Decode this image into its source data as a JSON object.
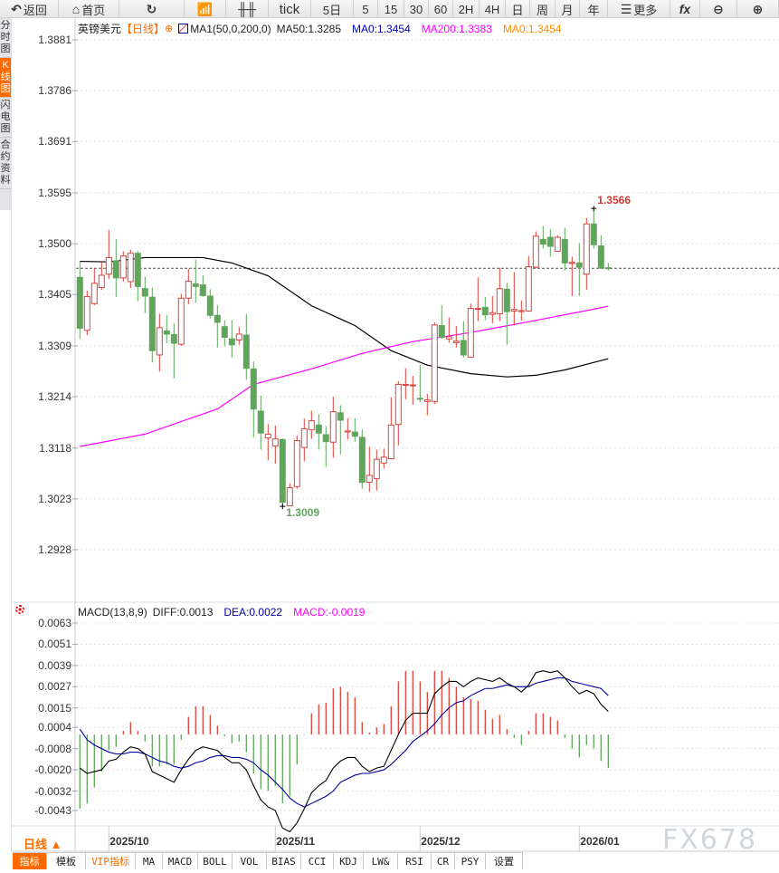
{
  "toolbar": [
    {
      "label": "返回",
      "icon": "back-arrow-icon",
      "w": 65
    },
    {
      "label": "首页",
      "icon": "home-icon",
      "w": 67
    },
    {
      "label": "",
      "icon": "refresh-icon",
      "w": 72
    },
    {
      "label": "",
      "icon": "indicator-chart-icon",
      "w": 46
    },
    {
      "label": "",
      "icon": "candlestick-icon",
      "w": 47
    },
    {
      "label": "tick",
      "icon": "",
      "w": 47
    },
    {
      "label": "5日",
      "icon": "",
      "w": 47
    },
    {
      "label": "5",
      "icon": "",
      "w": 27
    },
    {
      "label": "15",
      "icon": "",
      "w": 29
    },
    {
      "label": "30",
      "icon": "",
      "w": 27
    },
    {
      "label": "60",
      "icon": "",
      "w": 27
    },
    {
      "label": "2H",
      "icon": "",
      "w": 29
    },
    {
      "label": "4H",
      "icon": "",
      "w": 29
    },
    {
      "label": "日",
      "icon": "",
      "w": 27
    },
    {
      "label": "周",
      "icon": "",
      "w": 28
    },
    {
      "label": "月",
      "icon": "",
      "w": 27
    },
    {
      "label": "年",
      "icon": "",
      "w": 31
    },
    {
      "label": "更多",
      "icon": "menu-icon",
      "w": 69
    },
    {
      "label": "",
      "icon": "fx-icon",
      "w": 33
    },
    {
      "label": "",
      "icon": "zoom-out-icon",
      "w": 41
    },
    {
      "label": "",
      "icon": "zoom-in-icon",
      "w": 46
    }
  ],
  "left_tabs": [
    {
      "label": "分时图",
      "active": false
    },
    {
      "label": "K线图",
      "active": true
    },
    {
      "label": "闪电图",
      "active": false
    },
    {
      "label": "合约资料",
      "active": false
    }
  ],
  "legend": {
    "symbol": "英镑美元",
    "period": "【日线】",
    "ma_params": "MA1(50,0,200,0)",
    "ma50": "MA50:1.3285",
    "ma0a": "MA0:1.3454",
    "ma200": "MA200:1.3383",
    "ma0b": "MA0:1.3454"
  },
  "macd_legend": {
    "params": "MACD(13,8,9)",
    "diff": "DIFF:0.0013",
    "dea": "DEA:0.0022",
    "macd": "MACD:-0.0019"
  },
  "period_selector": "日线 ▲",
  "bottom_tabs": [
    {
      "label": "指标",
      "w": 38,
      "active": true
    },
    {
      "label": "模板",
      "w": 43
    },
    {
      "label": "VIP指标",
      "w": 55,
      "vip": true
    },
    {
      "label": "MA",
      "w": 30
    },
    {
      "label": "MACD",
      "w": 39
    },
    {
      "label": "BOLL",
      "w": 38
    },
    {
      "label": "VOL",
      "w": 38
    },
    {
      "label": "BIAS",
      "w": 38
    },
    {
      "label": "CCI",
      "w": 36
    },
    {
      "label": "KDJ",
      "w": 33
    },
    {
      "label": "LW&",
      "w": 38
    },
    {
      "label": "RSI",
      "w": 37
    },
    {
      "label": "CR",
      "w": 26
    },
    {
      "label": "PSY",
      "w": 34
    },
    {
      "label": "设置",
      "w": 41
    }
  ],
  "watermark": "FX678",
  "colors": {
    "up": "#e0413a",
    "down": "#5fa65a",
    "ma50": "#000000",
    "ma200": "#ff00ff",
    "ma0": "#ff8c00",
    "dea": "#0000a0",
    "orange": "#ff6a00",
    "last_price_line": "#1e6fd9"
  },
  "chart_data": {
    "type": "candlestick",
    "price_axis": {
      "ticks": [
        "1.3881",
        "1.3786",
        "1.3691",
        "1.3595",
        "1.3500",
        "1.3405",
        "1.3309",
        "1.3214",
        "1.3118",
        "1.3023",
        "1.2928"
      ],
      "range": [
        1.2928,
        1.3881
      ]
    },
    "date_ticks": [
      {
        "label": "2025/10",
        "candle": 5
      },
      {
        "label": "2025/11",
        "candle": 28
      },
      {
        "label": "2025/12",
        "candle": 48
      },
      {
        "label": "2026/01",
        "candle": 70
      }
    ],
    "last_price": 1.3454,
    "high_label": {
      "text": "1.3566",
      "candle": 72,
      "value": 1.3566
    },
    "low_label": {
      "text": "1.3009",
      "candle": 29,
      "value": 1.3009
    },
    "ohlc": [
      [
        1.3437,
        1.3466,
        1.3322,
        1.3342
      ],
      [
        1.3338,
        1.3412,
        1.3329,
        1.3401
      ],
      [
        1.3388,
        1.3455,
        1.3385,
        1.3426
      ],
      [
        1.3418,
        1.3465,
        1.3414,
        1.3441
      ],
      [
        1.3443,
        1.3526,
        1.3434,
        1.3474
      ],
      [
        1.3468,
        1.3509,
        1.34,
        1.3436
      ],
      [
        1.3436,
        1.3486,
        1.3429,
        1.3477
      ],
      [
        1.3429,
        1.3489,
        1.3417,
        1.3482
      ],
      [
        1.3482,
        1.3486,
        1.3392,
        1.342
      ],
      [
        1.3416,
        1.3438,
        1.337,
        1.3402
      ],
      [
        1.34,
        1.3418,
        1.3278,
        1.33
      ],
      [
        1.3292,
        1.3369,
        1.3261,
        1.3343
      ],
      [
        1.3337,
        1.3366,
        1.3314,
        1.3331
      ],
      [
        1.333,
        1.3351,
        1.3248,
        1.3314
      ],
      [
        1.3312,
        1.3406,
        1.3309,
        1.3398
      ],
      [
        1.3398,
        1.3453,
        1.3387,
        1.343
      ],
      [
        1.3425,
        1.347,
        1.339,
        1.342
      ],
      [
        1.3423,
        1.3441,
        1.3401,
        1.3403
      ],
      [
        1.3402,
        1.3415,
        1.336,
        1.3366
      ],
      [
        1.3366,
        1.3385,
        1.3306,
        1.3353
      ],
      [
        1.3345,
        1.3357,
        1.3308,
        1.3325
      ],
      [
        1.3322,
        1.3357,
        1.3287,
        1.3311
      ],
      [
        1.332,
        1.3344,
        1.3311,
        1.3331
      ],
      [
        1.3329,
        1.3369,
        1.3246,
        1.3267
      ],
      [
        1.3266,
        1.328,
        1.3138,
        1.3191
      ],
      [
        1.3187,
        1.3216,
        1.3115,
        1.3146
      ],
      [
        1.3137,
        1.3163,
        1.3095,
        1.3144
      ],
      [
        1.3122,
        1.316,
        1.3089,
        1.3135
      ],
      [
        1.3134,
        1.3136,
        1.3009,
        1.3017
      ],
      [
        1.301,
        1.3052,
        1.301,
        1.3044
      ],
      [
        1.3046,
        1.3141,
        1.3042,
        1.3132
      ],
      [
        1.3119,
        1.3173,
        1.3093,
        1.3154
      ],
      [
        1.3152,
        1.3188,
        1.3135,
        1.3169
      ],
      [
        1.3161,
        1.3181,
        1.3115,
        1.3146
      ],
      [
        1.3143,
        1.3159,
        1.3083,
        1.313
      ],
      [
        1.3129,
        1.3214,
        1.31,
        1.3186
      ],
      [
        1.3184,
        1.3198,
        1.3106,
        1.317
      ],
      [
        1.3148,
        1.3174,
        1.3134,
        1.315
      ],
      [
        1.3148,
        1.3174,
        1.313,
        1.314
      ],
      [
        1.3138,
        1.3153,
        1.3042,
        1.3054
      ],
      [
        1.3054,
        1.3121,
        1.3036,
        1.3067
      ],
      [
        1.3061,
        1.3115,
        1.3038,
        1.3097
      ],
      [
        1.309,
        1.3117,
        1.308,
        1.3101
      ],
      [
        1.3098,
        1.3213,
        1.3097,
        1.3161
      ],
      [
        1.3162,
        1.3243,
        1.3123,
        1.3237
      ],
      [
        1.3236,
        1.3267,
        1.3209,
        1.3237
      ],
      [
        1.3235,
        1.3253,
        1.3199,
        1.3236
      ],
      [
        1.3211,
        1.3274,
        1.3204,
        1.321
      ],
      [
        1.3205,
        1.3219,
        1.3179,
        1.3208
      ],
      [
        1.3205,
        1.3353,
        1.32,
        1.3348
      ],
      [
        1.3347,
        1.3385,
        1.3322,
        1.3325
      ],
      [
        1.3322,
        1.3362,
        1.3315,
        1.3326
      ],
      [
        1.3315,
        1.3346,
        1.3306,
        1.3318
      ],
      [
        1.3319,
        1.3355,
        1.3287,
        1.3292
      ],
      [
        1.3288,
        1.3388,
        1.3287,
        1.3379
      ],
      [
        1.3378,
        1.3437,
        1.3355,
        1.3379
      ],
      [
        1.3381,
        1.34,
        1.3357,
        1.3367
      ],
      [
        1.3368,
        1.3402,
        1.3351,
        1.3371
      ],
      [
        1.3369,
        1.3455,
        1.3355,
        1.3416
      ],
      [
        1.3415,
        1.3427,
        1.3311,
        1.3373
      ],
      [
        1.3374,
        1.3447,
        1.3347,
        1.3377
      ],
      [
        1.3373,
        1.3394,
        1.3356,
        1.3375
      ],
      [
        1.3374,
        1.3477,
        1.3373,
        1.3457
      ],
      [
        1.3456,
        1.3523,
        1.3454,
        1.3514
      ],
      [
        1.3508,
        1.3533,
        1.3491,
        1.3499
      ],
      [
        1.3512,
        1.3527,
        1.3476,
        1.3495
      ],
      [
        1.3486,
        1.3516,
        1.3485,
        1.3512
      ],
      [
        1.3508,
        1.353,
        1.345,
        1.3464
      ],
      [
        1.3463,
        1.3476,
        1.3402,
        1.3465
      ],
      [
        1.3464,
        1.3501,
        1.3402,
        1.3456
      ],
      [
        1.3443,
        1.3548,
        1.3414,
        1.3537
      ],
      [
        1.3537,
        1.3566,
        1.3491,
        1.3498
      ],
      [
        1.3496,
        1.3516,
        1.3453,
        1.3454
      ],
      [
        1.3455,
        1.3464,
        1.345,
        1.3454
      ]
    ],
    "ma50": [
      [
        1,
        1.3467
      ],
      [
        5,
        1.3466
      ],
      [
        10,
        1.3474
      ],
      [
        18,
        1.3474
      ],
      [
        22,
        1.3464
      ],
      [
        27,
        1.344
      ],
      [
        33,
        1.3384
      ],
      [
        39,
        1.3347
      ],
      [
        44,
        1.33
      ],
      [
        49,
        1.3273
      ],
      [
        55,
        1.3257
      ],
      [
        60,
        1.3251
      ],
      [
        64,
        1.3254
      ],
      [
        68,
        1.3264
      ],
      [
        74,
        1.3285
      ]
    ],
    "ma200": [
      [
        1,
        1.3121
      ],
      [
        10,
        1.3144
      ],
      [
        20,
        1.3191
      ],
      [
        25,
        1.3237
      ],
      [
        33,
        1.3266
      ],
      [
        40,
        1.3295
      ],
      [
        47,
        1.3317
      ],
      [
        55,
        1.3334
      ],
      [
        63,
        1.3354
      ],
      [
        74,
        1.3383
      ]
    ],
    "macd_axis": {
      "ticks": [
        "0.0063",
        "0.0051",
        "0.0039",
        "0.0027",
        "0.0015",
        "0.0004",
        "-0.0008",
        "-0.0020",
        "-0.0032",
        "-0.0043"
      ]
    },
    "macd_hist": [
      -0.0042,
      -0.0039,
      -0.003,
      -0.0021,
      -0.0009,
      -0.0007,
      0.0002,
      0.0007,
      0.0002,
      -0.0004,
      -0.0018,
      -0.0018,
      -0.0017,
      -0.0017,
      -0.0003,
      0.001,
      0.0016,
      0.0016,
      0.0011,
      0.0005,
      -0.0001,
      -0.0005,
      -0.0004,
      -0.001,
      -0.0022,
      -0.0031,
      -0.0032,
      -0.0029,
      -0.0039,
      -0.0035,
      -0.0017,
      -3e-05,
      0.0012,
      0.0017,
      0.0018,
      0.0026,
      0.0027,
      0.0024,
      0.0021,
      0.0007,
      0.0001,
      0.0004,
      0.0006,
      0.0016,
      0.003,
      0.0036,
      0.0036,
      0.003,
      0.0024,
      0.0036,
      0.0036,
      0.0032,
      0.0027,
      0.0021,
      0.002,
      0.0019,
      0.0014,
      0.0009,
      0.0011,
      0.0003,
      -0.0002,
      -0.0006,
      0.0002,
      0.0012,
      0.0012,
      0.001,
      0.0008,
      -0.0002,
      -0.0008,
      -0.0013,
      -0.0006,
      -0.0008,
      -0.0015,
      -0.0019
    ],
    "diff": [
      -0.0019,
      -0.0022,
      -0.0021,
      -0.002,
      -0.0015,
      -0.0014,
      -0.001,
      -0.0007,
      -0.0008,
      -0.0011,
      -0.0021,
      -0.0023,
      -0.0025,
      -0.0027,
      -0.002,
      -0.0014,
      -0.0009,
      -0.0007,
      -0.0008,
      -0.0009,
      -0.0013,
      -0.0016,
      -0.0016,
      -0.002,
      -0.0029,
      -0.0037,
      -0.0041,
      -0.0043,
      -0.0053,
      -0.0055,
      -0.005,
      -0.0042,
      -0.0033,
      -0.0029,
      -0.0026,
      -0.0019,
      -0.0015,
      -0.0013,
      -0.0013,
      -0.0018,
      -0.0021,
      -0.0019,
      -0.0018,
      -0.0009,
      0.0,
      0.0008,
      0.0012,
      0.0012,
      0.0012,
      0.0023,
      0.0027,
      0.003,
      0.003,
      0.0027,
      0.003,
      0.0032,
      0.0031,
      0.003,
      0.0032,
      0.0029,
      0.0027,
      0.0024,
      0.0028,
      0.0035,
      0.0036,
      0.0035,
      0.0036,
      0.0032,
      0.0027,
      0.0023,
      0.0025,
      0.0023,
      0.0017,
      0.0013
    ],
    "dea": [
      0.0003,
      -0.0003,
      -0.0006,
      -0.0008,
      -0.001,
      -0.0011,
      -0.0011,
      -0.001,
      -0.001,
      -0.0011,
      -0.0013,
      -0.0015,
      -0.0016,
      -0.0018,
      -0.0019,
      -0.0018,
      -0.0016,
      -0.0015,
      -0.0013,
      -0.0012,
      -0.0012,
      -0.0013,
      -0.0013,
      -0.0014,
      -0.0016,
      -0.002,
      -0.0023,
      -0.0027,
      -0.0031,
      -0.0036,
      -0.0039,
      -0.0041,
      -0.0039,
      -0.0037,
      -0.0035,
      -0.0032,
      -0.0027,
      -0.0025,
      -0.0023,
      -0.0022,
      -0.0022,
      -0.0021,
      -0.002,
      -0.0017,
      -0.0013,
      -0.0009,
      -0.0004,
      -0.0001,
      0.0002,
      0.0006,
      0.0011,
      0.0015,
      0.0018,
      0.0019,
      0.0022,
      0.0024,
      0.0026,
      0.0026,
      0.0027,
      0.0028,
      0.0027,
      0.0027,
      0.0027,
      0.0029,
      0.003,
      0.0031,
      0.0032,
      0.0032,
      0.003,
      0.0029,
      0.0028,
      0.0027,
      0.0026,
      0.0022
    ]
  }
}
